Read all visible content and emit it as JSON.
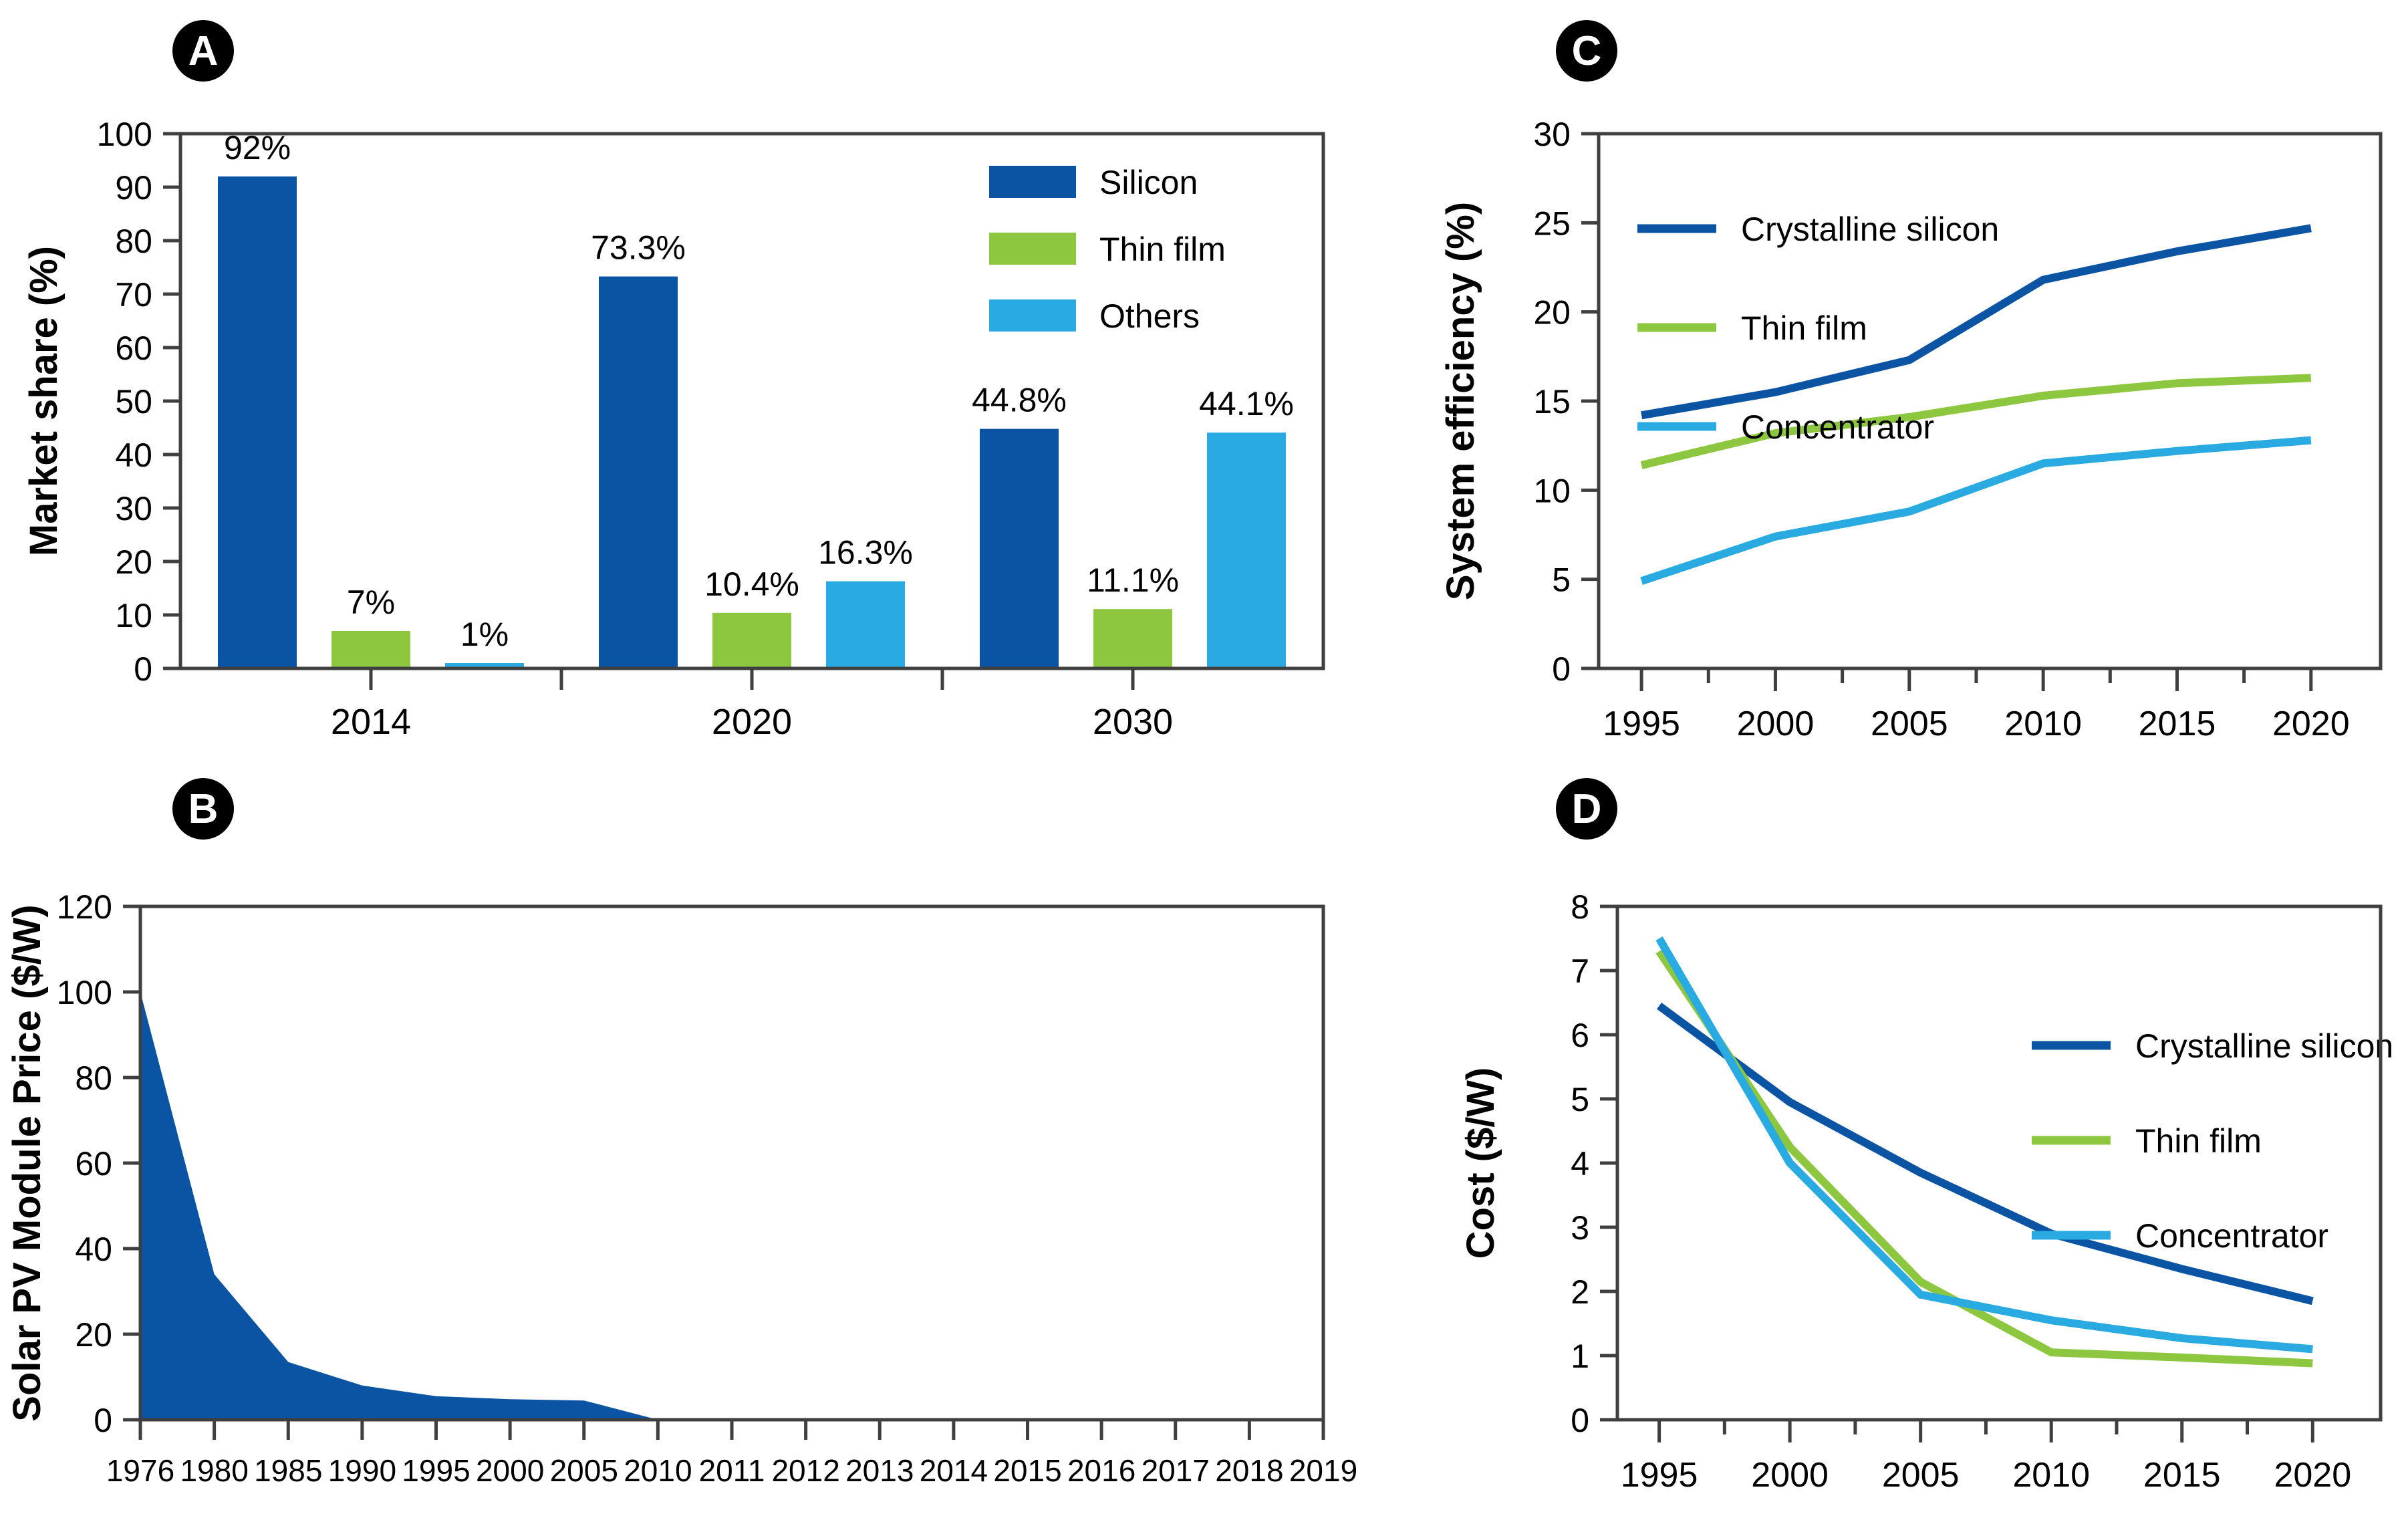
{
  "figure": {
    "background": "#ffffff",
    "colors": {
      "silicon_blue": "#0B54A4",
      "thin_film_green": "#8DC63F",
      "others_light_blue": "#29ABE2",
      "axis": "#3f3f41",
      "text": "#000000"
    }
  },
  "chart_data": [
    {
      "panel": "A",
      "type": "bar",
      "ylabel": "Market share (%)",
      "ylim": [
        0,
        100
      ],
      "yticks": [
        0,
        10,
        20,
        30,
        40,
        50,
        60,
        70,
        80,
        90,
        100
      ],
      "categories": [
        "2014",
        "2020",
        "2030"
      ],
      "series": [
        {
          "name": "Silicon",
          "color": "#0B54A4",
          "values": [
            92,
            73.3,
            44.8
          ],
          "value_labels": [
            "92%",
            "73.3%",
            "44.8%"
          ]
        },
        {
          "name": "Thin film",
          "color": "#8DC63F",
          "values": [
            7,
            10.4,
            11.1
          ],
          "value_labels": [
            "7%",
            "10.4%",
            "11.1%"
          ]
        },
        {
          "name": "Others",
          "color": "#29ABE2",
          "values": [
            1,
            16.3,
            44.1
          ],
          "value_labels": [
            "1%",
            "16.3%",
            "44.1%"
          ]
        }
      ],
      "legend": {
        "position": "top-right",
        "items": [
          "Silicon",
          "Thin film",
          "Others"
        ]
      }
    },
    {
      "panel": "B",
      "type": "area",
      "ylabel": "Solar PV Module Price ($/W)",
      "ylim": [
        0,
        120
      ],
      "yticks": [
        0,
        20,
        40,
        60,
        80,
        100,
        120
      ],
      "categories": [
        "1976",
        "1980",
        "1985",
        "1990",
        "1995",
        "2000",
        "2005",
        "2010",
        "2011",
        "2012",
        "2013",
        "2014",
        "2015",
        "2016",
        "2017",
        "2018",
        "2019"
      ],
      "series": [
        {
          "name": "Solar PV module price",
          "color": "#0B54A4",
          "values": [
            100,
            34,
            13.5,
            8,
            5.5,
            4.8,
            4.5,
            0,
            0,
            0,
            0,
            0,
            0,
            0,
            0,
            0,
            0
          ]
        }
      ]
    },
    {
      "panel": "C",
      "type": "line",
      "ylabel": "System efficiency (%)",
      "ylim": [
        0,
        30
      ],
      "yticks": [
        0,
        5,
        10,
        15,
        20,
        25,
        30
      ],
      "x": [
        1995,
        2000,
        2005,
        2010,
        2015,
        2020
      ],
      "xticks": [
        1995,
        2000,
        2005,
        2010,
        2015,
        2020
      ],
      "xlim": [
        1993.4,
        2022.6
      ],
      "series": [
        {
          "name": "Crystalline silicon",
          "color": "#0B54A4",
          "values": [
            14.2,
            15.5,
            17.3,
            21.8,
            23.4,
            24.7
          ]
        },
        {
          "name": "Thin film",
          "color": "#8DC63F",
          "values": [
            11.4,
            13.2,
            14.1,
            15.3,
            16.0,
            16.3
          ]
        },
        {
          "name": "Concentrator",
          "color": "#29ABE2",
          "values": [
            4.9,
            7.4,
            8.8,
            11.5,
            12.2,
            12.8
          ]
        }
      ],
      "legend": {
        "position": "top-left",
        "items": [
          "Crystalline silicon",
          "Thin film",
          "Concentrator"
        ]
      }
    },
    {
      "panel": "D",
      "type": "line",
      "ylabel": "Cost ($/W)",
      "ylim": [
        0,
        8
      ],
      "yticks": [
        0,
        1,
        2,
        3,
        4,
        5,
        6,
        7,
        8
      ],
      "x": [
        1995,
        2000,
        2005,
        2010,
        2015,
        2020
      ],
      "xticks": [
        1995,
        2000,
        2005,
        2010,
        2015,
        2020
      ],
      "xlim": [
        1993.4,
        2022.6
      ],
      "series": [
        {
          "name": "Crystalline silicon",
          "color": "#0B54A4",
          "values": [
            6.45,
            4.95,
            3.85,
            2.9,
            2.35,
            1.85
          ]
        },
        {
          "name": "Thin film",
          "color": "#8DC63F",
          "values": [
            7.3,
            4.25,
            2.15,
            1.05,
            0.97,
            0.88
          ]
        },
        {
          "name": "Concentrator",
          "color": "#29ABE2",
          "values": [
            7.5,
            4.0,
            1.95,
            1.55,
            1.27,
            1.1
          ]
        }
      ],
      "legend": {
        "position": "middle-right",
        "items": [
          "Crystalline silicon",
          "Thin film",
          "Concentrator"
        ]
      }
    }
  ]
}
